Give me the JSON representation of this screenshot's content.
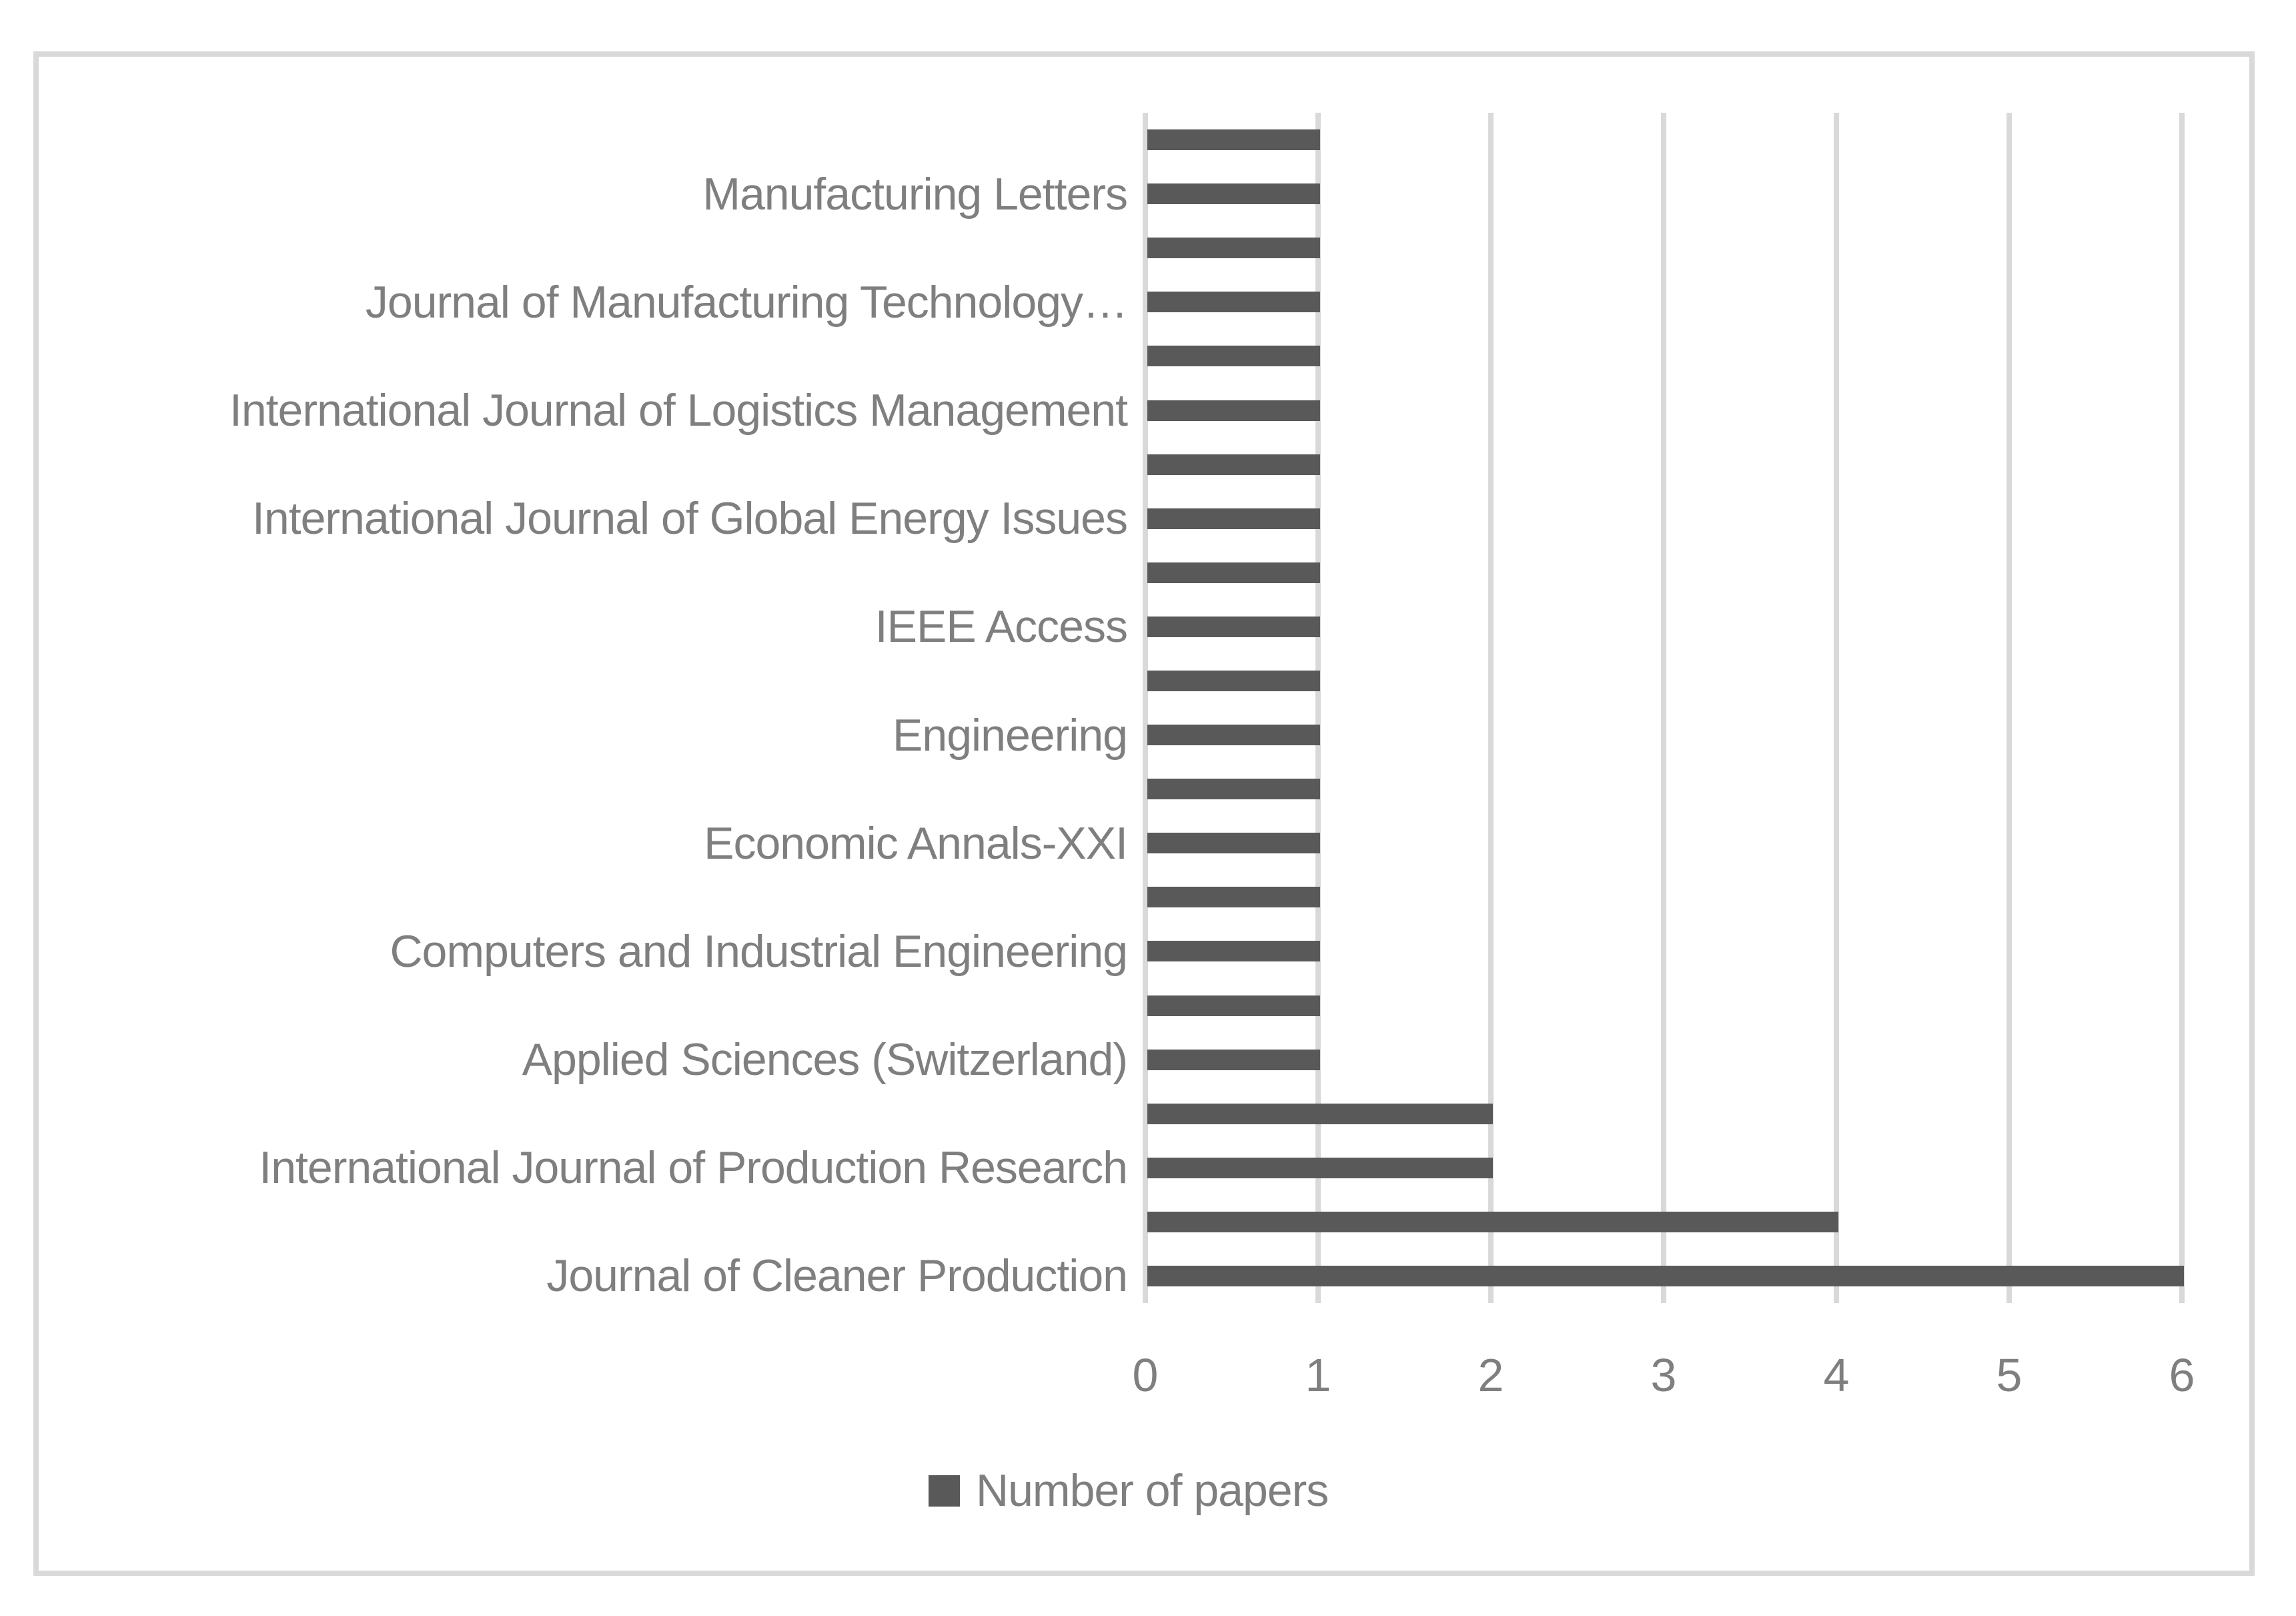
{
  "chart_data": {
    "type": "bar",
    "orientation": "horizontal",
    "title": "",
    "xlabel": "",
    "ylabel": "",
    "xlim": [
      0,
      6
    ],
    "x_ticks": [
      "0",
      "1",
      "2",
      "3",
      "4",
      "5",
      "6"
    ],
    "grid": true,
    "legend_position": "bottom-center",
    "series": [
      {
        "name": "Number of papers",
        "note_visible_labels": "only every other category label is shown on the axis",
        "categories_top_to_bottom": [
          "",
          "Manufacturing Letters",
          "",
          "Journal of Manufacturing Technology…",
          "",
          "International Journal of Logistics Management",
          "",
          "International Journal of Global Energy Issues",
          "",
          "IEEE Access",
          "",
          "Engineering",
          "",
          "Economic Annals-XXI",
          "",
          "Computers and Industrial Engineering",
          "",
          "Applied Sciences (Switzerland)",
          "",
          "International Journal of Production Research",
          "",
          "Journal of Cleaner Production"
        ],
        "values_top_to_bottom": [
          1,
          1,
          1,
          1,
          1,
          1,
          1,
          1,
          1,
          1,
          1,
          1,
          1,
          1,
          1,
          1,
          1,
          1,
          2,
          2,
          4,
          6
        ]
      }
    ]
  },
  "legend": {
    "label": "Number of papers"
  },
  "colors": {
    "bar": "#595959",
    "gridline": "#d9d9d9",
    "chart_border": "#d9d9d9",
    "axis_text": "#7f7f7f",
    "background": "#ffffff"
  }
}
